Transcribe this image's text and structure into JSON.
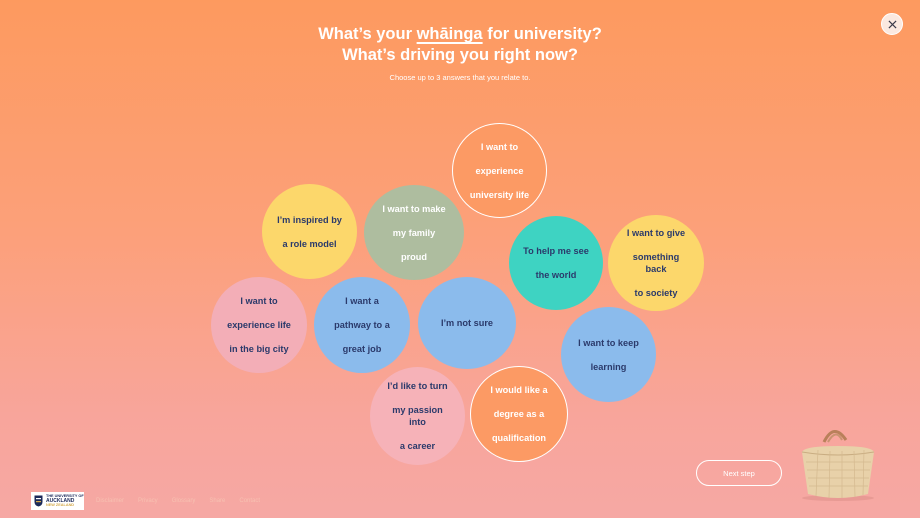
{
  "title": {
    "line1_pre": "What’s your ",
    "line1_hl": "whāinga",
    "line1_post": " for university?",
    "line2": "What’s driving you right now?"
  },
  "subtitle": "Choose up to 3 answers that you relate to.",
  "close_icon": "close-icon",
  "options": [
    {
      "key": "experience-uni-life",
      "lines": [
        "I want to",
        "experience",
        "university life"
      ],
      "color": "#fc9a64"
    },
    {
      "key": "role-model",
      "lines": [
        "I’m inspired by",
        "a role model"
      ],
      "color": "#fcd76b"
    },
    {
      "key": "family-proud",
      "lines": [
        "I want to make",
        "my family",
        "proud"
      ],
      "color": "#aebd9f"
    },
    {
      "key": "help-world",
      "lines": [
        "To help me see",
        "the world"
      ],
      "color": "#3ed3c2"
    },
    {
      "key": "give-back",
      "lines": [
        "I want to give",
        "something back",
        "to society"
      ],
      "color": "#fcd76b"
    },
    {
      "key": "big-city",
      "lines": [
        "I want to",
        "experience life",
        "in the big city"
      ],
      "color": "#f3aeb7"
    },
    {
      "key": "great-job",
      "lines": [
        "I want a",
        "pathway to a",
        "great job"
      ],
      "color": "#8bbbec"
    },
    {
      "key": "not-sure",
      "lines": [
        "I’m not sure"
      ],
      "color": "#8bbbec"
    },
    {
      "key": "keep-learning",
      "lines": [
        "I want to keep",
        "learning"
      ],
      "color": "#8bbbec"
    },
    {
      "key": "passion-career",
      "lines": [
        "I’d like to turn",
        "my passion into",
        "a career"
      ],
      "color": "#f6b2b8"
    },
    {
      "key": "qualification",
      "lines": [
        "I would like a",
        "degree as a",
        "qualification"
      ],
      "color": "#fc9a64"
    }
  ],
  "next_button": "Next step",
  "basket_icon": "kete-basket-icon",
  "logo": {
    "line1": "THE UNIVERSITY OF",
    "line2": "AUCKLAND",
    "line3": "NEW ZEALAND"
  },
  "footer_links": [
    "Disclaimer",
    "Privacy",
    "Glossary",
    "Share",
    "Contact"
  ]
}
